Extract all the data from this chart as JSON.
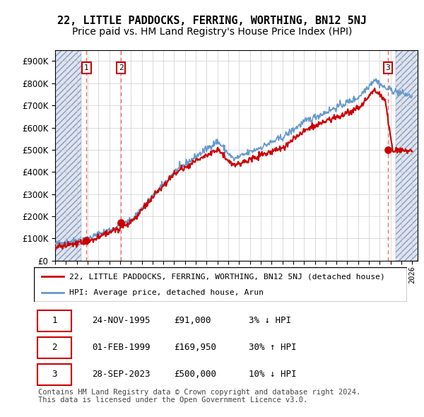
{
  "title": "22, LITTLE PADDOCKS, FERRING, WORTHING, BN12 5NJ",
  "subtitle": "Price paid vs. HM Land Registry's House Price Index (HPI)",
  "ytick_vals": [
    0,
    100000,
    200000,
    300000,
    400000,
    500000,
    600000,
    700000,
    800000,
    900000
  ],
  "ylim": [
    0,
    950000
  ],
  "xlim_start": 1993.0,
  "xlim_end": 2026.5,
  "sale_dates": [
    1995.9,
    1999.08,
    2023.74
  ],
  "sale_prices": [
    91000,
    169950,
    500000
  ],
  "sale_labels": [
    "1",
    "2",
    "3"
  ],
  "dashed_vline_color": "#ff6666",
  "sale_dot_color": "#cc0000",
  "hpi_line_color": "#6699cc",
  "price_line_color": "#cc0000",
  "legend_label_house": "22, LITTLE PADDOCKS, FERRING, WORTHING, BN12 5NJ (detached house)",
  "legend_label_hpi": "HPI: Average price, detached house, Arun",
  "table_rows": [
    [
      "1",
      "24-NOV-1995",
      "£91,000",
      "3% ↓ HPI"
    ],
    [
      "2",
      "01-FEB-1999",
      "£169,950",
      "30% ↑ HPI"
    ],
    [
      "3",
      "28-SEP-2023",
      "£500,000",
      "10% ↓ HPI"
    ]
  ],
  "footer": "Contains HM Land Registry data © Crown copyright and database right 2024.\nThis data is licensed under the Open Government Licence v3.0.",
  "title_fontsize": 11,
  "subtitle_fontsize": 10,
  "footer_fontsize": 7.5
}
